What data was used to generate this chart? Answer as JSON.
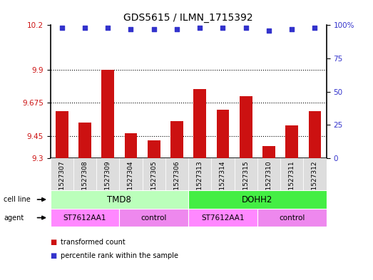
{
  "title": "GDS5615 / ILMN_1715392",
  "samples": [
    "GSM1527307",
    "GSM1527308",
    "GSM1527309",
    "GSM1527304",
    "GSM1527305",
    "GSM1527306",
    "GSM1527313",
    "GSM1527314",
    "GSM1527315",
    "GSM1527310",
    "GSM1527311",
    "GSM1527312"
  ],
  "bar_values": [
    9.62,
    9.54,
    9.9,
    9.47,
    9.42,
    9.55,
    9.77,
    9.63,
    9.72,
    9.38,
    9.52,
    9.62
  ],
  "dot_values": [
    98,
    98,
    98,
    97,
    97,
    97,
    98,
    98,
    98,
    96,
    97,
    98
  ],
  "bar_color": "#cc1111",
  "dot_color": "#3333cc",
  "ylim_left": [
    9.3,
    10.2
  ],
  "ylim_right": [
    0,
    100
  ],
  "yticks_left": [
    9.3,
    9.45,
    9.675,
    9.9,
    10.2
  ],
  "yticks_right": [
    0,
    25,
    50,
    75,
    100
  ],
  "dotted_lines": [
    9.9,
    9.675,
    9.45
  ],
  "cell_line_groups": [
    {
      "label": "TMD8",
      "start": 0,
      "end": 6,
      "color": "#bbffbb"
    },
    {
      "label": "DOHH2",
      "start": 6,
      "end": 12,
      "color": "#44ee44"
    }
  ],
  "agent_groups": [
    {
      "label": "ST7612AA1",
      "start": 0,
      "end": 3,
      "color": "#ff88ff"
    },
    {
      "label": "control",
      "start": 3,
      "end": 6,
      "color": "#ee88ee"
    },
    {
      "label": "ST7612AA1",
      "start": 6,
      "end": 9,
      "color": "#ff88ff"
    },
    {
      "label": "control",
      "start": 9,
      "end": 12,
      "color": "#ee88ee"
    }
  ],
  "bar_width": 0.55,
  "tick_label_color_left": "#cc1111",
  "tick_label_color_right": "#3333cc",
  "sample_bg_color": "#dddddd",
  "cell_line_label_color": "#000000",
  "agent_label_color": "#000000"
}
